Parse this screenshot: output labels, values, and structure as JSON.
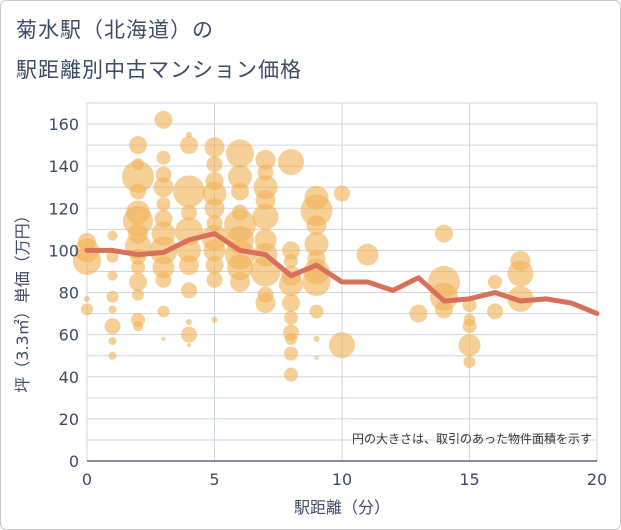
{
  "title_line1": "菊水駅（北海道）の",
  "title_line2": "駅距離別中古マンション価格",
  "note": "円の大きさは、取引のあった物件面積を示す",
  "colors": {
    "bubble": "#f0b357",
    "bubble_opacity": 0.62,
    "line": "#d9705a",
    "grid": "#cfd6e2",
    "text": "#3c4b66"
  },
  "chart_data": {
    "type": "scatter",
    "xlabel": "駅距離（分）",
    "ylabel": "坪（3.3㎡）単価（万円）",
    "xlim": [
      0,
      20
    ],
    "ylim": [
      0,
      170
    ],
    "xticks": [
      0,
      5,
      10,
      15,
      20
    ],
    "yticks": [
      0,
      20,
      40,
      60,
      80,
      100,
      120,
      140,
      160
    ],
    "grid": true,
    "bubbles": [
      {
        "x": 0,
        "y": 100,
        "s": 12
      },
      {
        "x": 0,
        "y": 95,
        "s": 14
      },
      {
        "x": 0,
        "y": 104,
        "s": 9
      },
      {
        "x": 0,
        "y": 72,
        "s": 6
      },
      {
        "x": 0,
        "y": 77,
        "s": 3
      },
      {
        "x": 1,
        "y": 107,
        "s": 5
      },
      {
        "x": 1,
        "y": 97,
        "s": 6
      },
      {
        "x": 1,
        "y": 88,
        "s": 5
      },
      {
        "x": 1,
        "y": 78,
        "s": 6
      },
      {
        "x": 1,
        "y": 72,
        "s": 4
      },
      {
        "x": 1,
        "y": 64,
        "s": 8
      },
      {
        "x": 1,
        "y": 57,
        "s": 4
      },
      {
        "x": 1,
        "y": 50,
        "s": 4
      },
      {
        "x": 2,
        "y": 150,
        "s": 9
      },
      {
        "x": 2,
        "y": 141,
        "s": 6
      },
      {
        "x": 2,
        "y": 135,
        "s": 16
      },
      {
        "x": 2,
        "y": 128,
        "s": 8
      },
      {
        "x": 2,
        "y": 118,
        "s": 12
      },
      {
        "x": 2,
        "y": 114,
        "s": 15
      },
      {
        "x": 2,
        "y": 108,
        "s": 10
      },
      {
        "x": 2,
        "y": 102,
        "s": 13
      },
      {
        "x": 2,
        "y": 97,
        "s": 8
      },
      {
        "x": 2,
        "y": 92,
        "s": 7
      },
      {
        "x": 2,
        "y": 85,
        "s": 9
      },
      {
        "x": 2,
        "y": 79,
        "s": 6
      },
      {
        "x": 2,
        "y": 67,
        "s": 7
      },
      {
        "x": 2,
        "y": 64,
        "s": 5
      },
      {
        "x": 3,
        "y": 162,
        "s": 9
      },
      {
        "x": 3,
        "y": 144,
        "s": 7
      },
      {
        "x": 3,
        "y": 136,
        "s": 8
      },
      {
        "x": 3,
        "y": 130,
        "s": 10
      },
      {
        "x": 3,
        "y": 122,
        "s": 7
      },
      {
        "x": 3,
        "y": 115,
        "s": 9
      },
      {
        "x": 3,
        "y": 108,
        "s": 12
      },
      {
        "x": 3,
        "y": 100,
        "s": 14
      },
      {
        "x": 3,
        "y": 92,
        "s": 11
      },
      {
        "x": 3,
        "y": 86,
        "s": 8
      },
      {
        "x": 3,
        "y": 71,
        "s": 6
      },
      {
        "x": 3,
        "y": 58,
        "s": 2
      },
      {
        "x": 4,
        "y": 155,
        "s": 3
      },
      {
        "x": 4,
        "y": 150,
        "s": 9
      },
      {
        "x": 4,
        "y": 128,
        "s": 16
      },
      {
        "x": 4,
        "y": 118,
        "s": 8
      },
      {
        "x": 4,
        "y": 109,
        "s": 14
      },
      {
        "x": 4,
        "y": 100,
        "s": 12
      },
      {
        "x": 4,
        "y": 93,
        "s": 10
      },
      {
        "x": 4,
        "y": 81,
        "s": 8
      },
      {
        "x": 4,
        "y": 66,
        "s": 3
      },
      {
        "x": 4,
        "y": 60,
        "s": 8
      },
      {
        "x": 4,
        "y": 55,
        "s": 2
      },
      {
        "x": 5,
        "y": 149,
        "s": 10
      },
      {
        "x": 5,
        "y": 141,
        "s": 8
      },
      {
        "x": 5,
        "y": 133,
        "s": 9
      },
      {
        "x": 5,
        "y": 127,
        "s": 12
      },
      {
        "x": 5,
        "y": 120,
        "s": 10
      },
      {
        "x": 5,
        "y": 113,
        "s": 8
      },
      {
        "x": 5,
        "y": 106,
        "s": 13
      },
      {
        "x": 5,
        "y": 100,
        "s": 11
      },
      {
        "x": 5,
        "y": 93,
        "s": 9
      },
      {
        "x": 5,
        "y": 86,
        "s": 8
      },
      {
        "x": 5,
        "y": 67,
        "s": 3
      },
      {
        "x": 6,
        "y": 146,
        "s": 14
      },
      {
        "x": 6,
        "y": 135,
        "s": 12
      },
      {
        "x": 6,
        "y": 128,
        "s": 9
      },
      {
        "x": 6,
        "y": 118,
        "s": 8
      },
      {
        "x": 6,
        "y": 112,
        "s": 16
      },
      {
        "x": 6,
        "y": 105,
        "s": 14
      },
      {
        "x": 6,
        "y": 98,
        "s": 15
      },
      {
        "x": 6,
        "y": 92,
        "s": 13
      },
      {
        "x": 6,
        "y": 85,
        "s": 10
      },
      {
        "x": 7,
        "y": 143,
        "s": 10
      },
      {
        "x": 7,
        "y": 137,
        "s": 8
      },
      {
        "x": 7,
        "y": 130,
        "s": 12
      },
      {
        "x": 7,
        "y": 124,
        "s": 10
      },
      {
        "x": 7,
        "y": 116,
        "s": 13
      },
      {
        "x": 7,
        "y": 105,
        "s": 11
      },
      {
        "x": 7,
        "y": 98,
        "s": 12
      },
      {
        "x": 7,
        "y": 90,
        "s": 15
      },
      {
        "x": 7,
        "y": 79,
        "s": 8
      },
      {
        "x": 7,
        "y": 75,
        "s": 10
      },
      {
        "x": 8,
        "y": 142,
        "s": 13
      },
      {
        "x": 8,
        "y": 100,
        "s": 9
      },
      {
        "x": 8,
        "y": 95,
        "s": 7
      },
      {
        "x": 8,
        "y": 88,
        "s": 10
      },
      {
        "x": 8,
        "y": 84,
        "s": 12
      },
      {
        "x": 8,
        "y": 75,
        "s": 9
      },
      {
        "x": 8,
        "y": 68,
        "s": 7
      },
      {
        "x": 8,
        "y": 61,
        "s": 8
      },
      {
        "x": 8,
        "y": 58,
        "s": 6
      },
      {
        "x": 8,
        "y": 51,
        "s": 7
      },
      {
        "x": 8,
        "y": 41,
        "s": 7
      },
      {
        "x": 9,
        "y": 125,
        "s": 12
      },
      {
        "x": 9,
        "y": 119,
        "s": 16
      },
      {
        "x": 9,
        "y": 112,
        "s": 10
      },
      {
        "x": 9,
        "y": 103,
        "s": 12
      },
      {
        "x": 9,
        "y": 96,
        "s": 9
      },
      {
        "x": 9,
        "y": 90,
        "s": 13
      },
      {
        "x": 9,
        "y": 85,
        "s": 14
      },
      {
        "x": 9,
        "y": 71,
        "s": 7
      },
      {
        "x": 9,
        "y": 58,
        "s": 3
      },
      {
        "x": 9,
        "y": 49,
        "s": 2
      },
      {
        "x": 10,
        "y": 127,
        "s": 8
      },
      {
        "x": 10,
        "y": 55,
        "s": 13
      },
      {
        "x": 11,
        "y": 98,
        "s": 11
      },
      {
        "x": 13,
        "y": 70,
        "s": 9
      },
      {
        "x": 14,
        "y": 108,
        "s": 9
      },
      {
        "x": 14,
        "y": 85,
        "s": 16
      },
      {
        "x": 14,
        "y": 78,
        "s": 14
      },
      {
        "x": 14,
        "y": 72,
        "s": 9
      },
      {
        "x": 15,
        "y": 74,
        "s": 7
      },
      {
        "x": 15,
        "y": 67,
        "s": 6
      },
      {
        "x": 15,
        "y": 64,
        "s": 7
      },
      {
        "x": 15,
        "y": 55,
        "s": 11
      },
      {
        "x": 15,
        "y": 47,
        "s": 6
      },
      {
        "x": 16,
        "y": 85,
        "s": 7
      },
      {
        "x": 16,
        "y": 71,
        "s": 8
      },
      {
        "x": 17,
        "y": 95,
        "s": 10
      },
      {
        "x": 17,
        "y": 89,
        "s": 13
      },
      {
        "x": 17,
        "y": 77,
        "s": 13
      }
    ],
    "trend": {
      "x": [
        0,
        1,
        2,
        3,
        4,
        5,
        6,
        7,
        8,
        9,
        10,
        11,
        12,
        13,
        14,
        15,
        16,
        17,
        18,
        19,
        20
      ],
      "y": [
        100,
        100,
        98,
        99,
        105,
        108,
        100,
        98,
        88,
        93,
        85,
        85,
        81,
        87,
        76,
        77,
        80,
        76,
        77,
        75,
        70
      ]
    }
  }
}
